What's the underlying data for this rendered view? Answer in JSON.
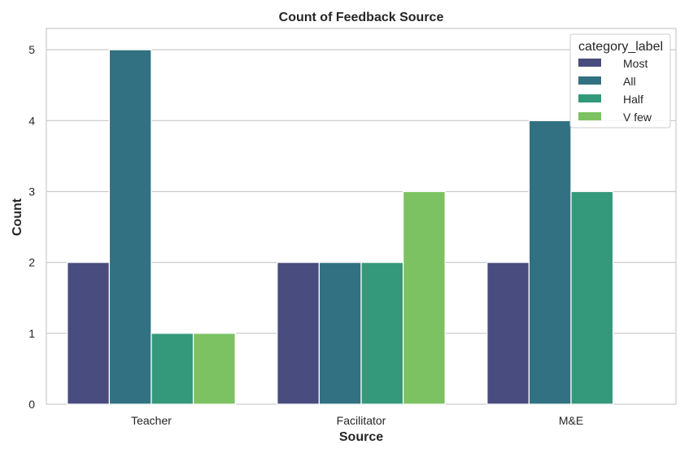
{
  "chart_data": {
    "type": "bar",
    "title": "Count of Feedback Source",
    "xlabel": "Source",
    "ylabel": "Count",
    "categories": [
      "Teacher",
      "Facilitator",
      "M&E"
    ],
    "ylim": [
      0,
      5.3
    ],
    "yticks": [
      0,
      1,
      2,
      3,
      4,
      5
    ],
    "grid": true,
    "legend": {
      "title": "category_label",
      "placement": "top-right"
    },
    "series": [
      {
        "name": "Most",
        "color": "#484c7f",
        "values": [
          2,
          2,
          2
        ]
      },
      {
        "name": "All",
        "color": "#327181",
        "values": [
          5,
          2,
          4
        ]
      },
      {
        "name": "Half",
        "color": "#34997b",
        "values": [
          1,
          2,
          3
        ]
      },
      {
        "name": "V few",
        "color": "#7cc262",
        "values": [
          1,
          3,
          0
        ]
      }
    ]
  }
}
